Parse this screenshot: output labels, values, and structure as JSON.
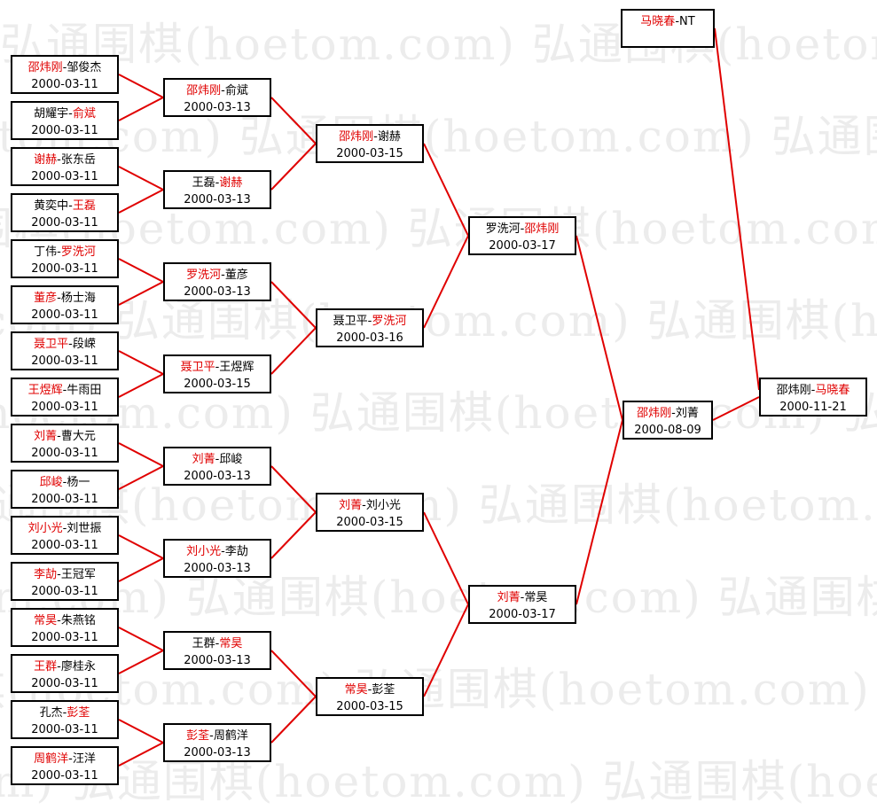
{
  "watermark": "弘通围棋(hoetom.com) 弘通围棋(hoetom.com) 弘通围棋(hoetom.com)",
  "colors": {
    "winner": "#e00000",
    "line": "#e00000",
    "box_border": "#000000"
  },
  "separator": "-",
  "rounds": [
    [
      {
        "p1": "邵炜刚",
        "p2": "邹俊杰",
        "winner": 1,
        "date": "2000-03-11"
      },
      {
        "p1": "胡耀宇",
        "p2": "俞斌",
        "winner": 2,
        "date": "2000-03-11"
      },
      {
        "p1": "谢赫",
        "p2": "张东岳",
        "winner": 1,
        "date": "2000-03-11"
      },
      {
        "p1": "黄奕中",
        "p2": "王磊",
        "winner": 2,
        "date": "2000-03-11"
      },
      {
        "p1": "丁伟",
        "p2": "罗洗河",
        "winner": 2,
        "date": "2000-03-11"
      },
      {
        "p1": "董彦",
        "p2": "杨士海",
        "winner": 1,
        "date": "2000-03-11"
      },
      {
        "p1": "聂卫平",
        "p2": "段嵘",
        "winner": 1,
        "date": "2000-03-11"
      },
      {
        "p1": "王煜辉",
        "p2": "牛雨田",
        "winner": 1,
        "date": "2000-03-11"
      },
      {
        "p1": "刘菁",
        "p2": "曹大元",
        "winner": 1,
        "date": "2000-03-11"
      },
      {
        "p1": "邱峻",
        "p2": "杨一",
        "winner": 1,
        "date": "2000-03-11"
      },
      {
        "p1": "刘小光",
        "p2": "刘世振",
        "winner": 1,
        "date": "2000-03-11"
      },
      {
        "p1": "李劼",
        "p2": "王冠军",
        "winner": 1,
        "date": "2000-03-11"
      },
      {
        "p1": "常昊",
        "p2": "朱燕铭",
        "winner": 1,
        "date": "2000-03-11"
      },
      {
        "p1": "王群",
        "p2": "廖桂永",
        "winner": 1,
        "date": "2000-03-11"
      },
      {
        "p1": "孔杰",
        "p2": "彭荃",
        "winner": 2,
        "date": "2000-03-11"
      },
      {
        "p1": "周鹤洋",
        "p2": "汪洋",
        "winner": 1,
        "date": "2000-03-11"
      }
    ],
    [
      {
        "p1": "邵炜刚",
        "p2": "俞斌",
        "winner": 1,
        "date": "2000-03-13"
      },
      {
        "p1": "王磊",
        "p2": "谢赫",
        "winner": 2,
        "date": "2000-03-13"
      },
      {
        "p1": "罗洗河",
        "p2": "董彦",
        "winner": 1,
        "date": "2000-03-13"
      },
      {
        "p1": "聂卫平",
        "p2": "王煜辉",
        "winner": 1,
        "date": "2000-03-15"
      },
      {
        "p1": "刘菁",
        "p2": "邱峻",
        "winner": 1,
        "date": "2000-03-13"
      },
      {
        "p1": "刘小光",
        "p2": "李劼",
        "winner": 1,
        "date": "2000-03-13"
      },
      {
        "p1": "王群",
        "p2": "常昊",
        "winner": 2,
        "date": "2000-03-13"
      },
      {
        "p1": "彭荃",
        "p2": "周鹤洋",
        "winner": 1,
        "date": "2000-03-13"
      }
    ],
    [
      {
        "p1": "邵炜刚",
        "p2": "谢赫",
        "winner": 1,
        "date": "2000-03-15"
      },
      {
        "p1": "聂卫平",
        "p2": "罗洗河",
        "winner": 2,
        "date": "2000-03-16"
      },
      {
        "p1": "刘菁",
        "p2": "刘小光",
        "winner": 1,
        "date": "2000-03-15"
      },
      {
        "p1": "常昊",
        "p2": "彭荃",
        "winner": 1,
        "date": "2000-03-15"
      }
    ],
    [
      {
        "p1": "罗洗河",
        "p2": "邵炜刚",
        "winner": 2,
        "date": "2000-03-17"
      },
      {
        "p1": "刘菁",
        "p2": "常昊",
        "winner": 1,
        "date": "2000-03-17"
      }
    ],
    [
      {
        "p1": "邵炜刚",
        "p2": "刘菁",
        "winner": 1,
        "date": "2000-08-09"
      }
    ],
    [
      {
        "p1": "邵炜刚",
        "p2": "马晓春",
        "winner": 2,
        "date": "2000-11-21"
      }
    ]
  ],
  "seed": {
    "p1": "马晓春",
    "p2": "NT",
    "winner": 1
  }
}
